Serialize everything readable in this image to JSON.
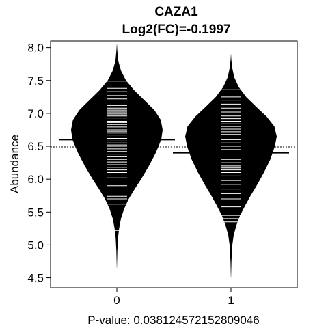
{
  "chart_data": {
    "type": "beanplot",
    "title": "CAZA1",
    "subtitle": "Log2(FC)=-0.1997",
    "xlabel": "P-value: 0.0381245721528090​46",
    "ylabel": "Abundance",
    "ylim": [
      4.35,
      8.1
    ],
    "yticks": [
      4.5,
      5.0,
      5.5,
      6.0,
      6.5,
      7.0,
      7.5,
      8.0
    ],
    "categories": [
      "0",
      "1"
    ],
    "overall_mean": 6.49,
    "grid": false,
    "colors": {
      "bean_fill": "#000000",
      "bean_lines": "#ffffff",
      "mean_line": "#000000"
    },
    "groups": [
      {
        "label": "0",
        "mean": 6.6,
        "min": 4.65,
        "max": 8.05,
        "density": [
          [
            4.65,
            0.002
          ],
          [
            4.9,
            0.01
          ],
          [
            5.1,
            0.025
          ],
          [
            5.25,
            0.05
          ],
          [
            5.4,
            0.09
          ],
          [
            5.55,
            0.16
          ],
          [
            5.7,
            0.26
          ],
          [
            5.85,
            0.39
          ],
          [
            6.0,
            0.53
          ],
          [
            6.2,
            0.7
          ],
          [
            6.4,
            0.85
          ],
          [
            6.6,
            0.97
          ],
          [
            6.75,
            1.0
          ],
          [
            6.9,
            0.96
          ],
          [
            7.05,
            0.82
          ],
          [
            7.2,
            0.6
          ],
          [
            7.35,
            0.38
          ],
          [
            7.5,
            0.2
          ],
          [
            7.65,
            0.09
          ],
          [
            7.8,
            0.03
          ],
          [
            7.95,
            0.01
          ],
          [
            8.05,
            0.002
          ]
        ],
        "points": [
          5.22,
          5.62,
          5.7,
          5.74,
          5.9,
          6.02,
          6.1,
          6.14,
          6.18,
          6.22,
          6.26,
          6.3,
          6.34,
          6.38,
          6.42,
          6.46,
          6.5,
          6.5,
          6.52,
          6.55,
          6.58,
          6.62,
          6.64,
          6.67,
          6.7,
          6.72,
          6.75,
          6.78,
          6.8,
          6.83,
          6.86,
          6.88,
          6.9,
          6.93,
          6.96,
          6.99,
          7.02,
          7.05,
          7.08,
          7.12,
          7.17,
          7.22,
          7.27,
          7.33,
          7.38,
          7.49
        ]
      },
      {
        "label": "1",
        "mean": 6.4,
        "min": 4.5,
        "max": 7.9,
        "density": [
          [
            4.5,
            0.002
          ],
          [
            4.75,
            0.01
          ],
          [
            5.0,
            0.03
          ],
          [
            5.15,
            0.06
          ],
          [
            5.3,
            0.12
          ],
          [
            5.45,
            0.2
          ],
          [
            5.6,
            0.31
          ],
          [
            5.75,
            0.43
          ],
          [
            5.9,
            0.56
          ],
          [
            6.1,
            0.72
          ],
          [
            6.3,
            0.86
          ],
          [
            6.5,
            0.96
          ],
          [
            6.65,
            1.0
          ],
          [
            6.8,
            0.95
          ],
          [
            6.95,
            0.78
          ],
          [
            7.1,
            0.55
          ],
          [
            7.25,
            0.33
          ],
          [
            7.4,
            0.17
          ],
          [
            7.55,
            0.07
          ],
          [
            7.7,
            0.025
          ],
          [
            7.82,
            0.008
          ],
          [
            7.9,
            0.002
          ]
        ],
        "points": [
          5.03,
          5.35,
          5.4,
          5.45,
          5.58,
          5.7,
          5.78,
          5.85,
          5.92,
          5.98,
          6.05,
          6.1,
          6.14,
          6.17,
          6.2,
          6.25,
          6.3,
          6.35,
          6.4,
          6.45,
          6.5,
          6.55,
          6.6,
          6.64,
          6.68,
          6.72,
          6.76,
          6.8,
          6.84,
          6.88,
          6.92,
          6.96,
          7.02,
          7.08,
          7.14,
          7.2,
          7.25,
          7.36
        ]
      }
    ]
  }
}
